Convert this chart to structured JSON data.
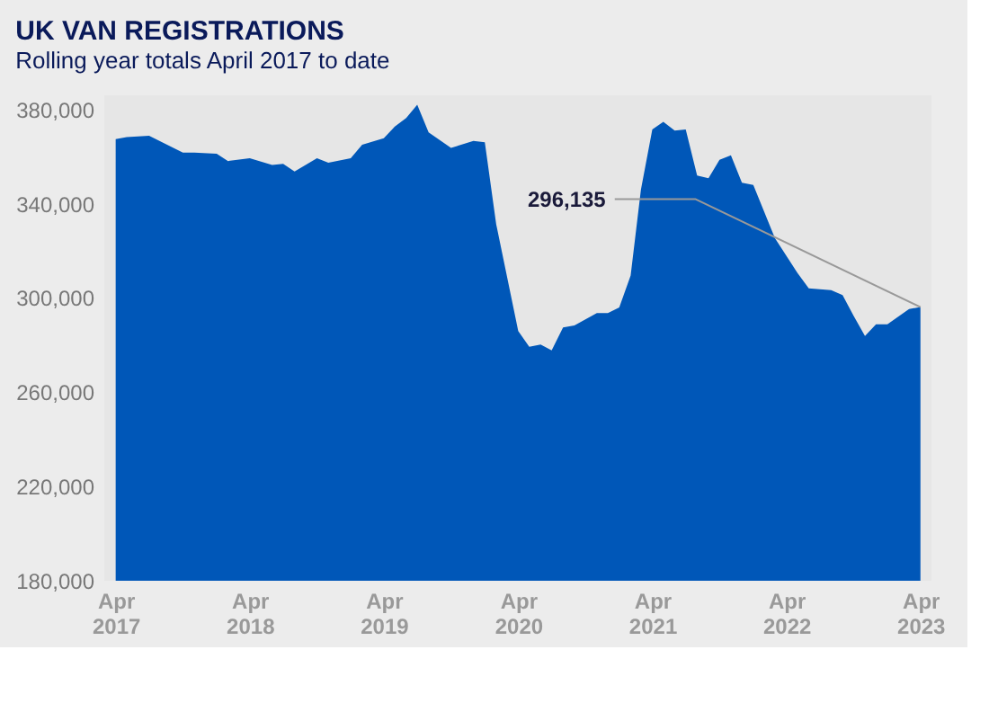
{
  "chart_data": {
    "type": "area",
    "title": "UK VAN REGISTRATIONS",
    "subtitle": "Rolling year totals April 2017 to date",
    "x": [
      "2017-04",
      "2017-05",
      "2017-07",
      "2017-10",
      "2017-11",
      "2018-01",
      "2018-02",
      "2018-04",
      "2018-06",
      "2018-07",
      "2018-08",
      "2018-10",
      "2018-11",
      "2019-01",
      "2019-02",
      "2019-04",
      "2019-05",
      "2019-06",
      "2019-07",
      "2019-08",
      "2019-10",
      "2019-12",
      "2020-01",
      "2020-02",
      "2020-04",
      "2020-05",
      "2020-06",
      "2020-07",
      "2020-08",
      "2020-09",
      "2020-11",
      "2020-12",
      "2021-01",
      "2021-02",
      "2021-03",
      "2021-04",
      "2021-05",
      "2021-06",
      "2021-07",
      "2021-08",
      "2021-09",
      "2021-10",
      "2021-11",
      "2021-12",
      "2022-01",
      "2022-03",
      "2022-05",
      "2022-06",
      "2022-08",
      "2022-09",
      "2022-10",
      "2022-11",
      "2022-12",
      "2023-01",
      "2023-03",
      "2023-04"
    ],
    "series": [
      {
        "color": "#0057b8",
        "values": [
          367400,
          368300,
          368800,
          361700,
          361700,
          361200,
          358100,
          359300,
          356400,
          356900,
          353700,
          359300,
          357400,
          359300,
          365000,
          367800,
          372700,
          376400,
          382000,
          370300,
          363700,
          366600,
          366100,
          331300,
          286000,
          279300,
          280200,
          277800,
          287500,
          288300,
          293600,
          293600,
          296000,
          309500,
          345900,
          371500,
          374700,
          371000,
          371500,
          352000,
          350800,
          358600,
          360500,
          348900,
          347900,
          325300,
          310700,
          304100,
          303300,
          301200,
          292400,
          283900,
          288800,
          288800,
          295300,
          296135
        ]
      }
    ],
    "xlim": [
      "2017-03",
      "2023-05"
    ],
    "xticks": [
      {
        "value": "2017-04",
        "label": "Apr\n2017"
      },
      {
        "value": "2018-04",
        "label": "Apr\n2018"
      },
      {
        "value": "2019-04",
        "label": "Apr\n2019"
      },
      {
        "value": "2020-04",
        "label": "Apr\n2020"
      },
      {
        "value": "2021-04",
        "label": "Apr\n2021"
      },
      {
        "value": "2022-04",
        "label": "Apr\n2022"
      },
      {
        "value": "2023-04",
        "label": "Apr\n2023"
      }
    ],
    "ylim": [
      180000,
      386000
    ],
    "yticks": [
      {
        "value": 180000,
        "label": "180,000"
      },
      {
        "value": 220000,
        "label": "220,000"
      },
      {
        "value": 260000,
        "label": "260,000"
      },
      {
        "value": 300000,
        "label": "300,000"
      },
      {
        "value": 340000,
        "label": "340,000"
      },
      {
        "value": 380000,
        "label": "380,000"
      }
    ],
    "annotations": [
      {
        "text": "296,135",
        "x": "2023-04",
        "y": 296135
      }
    ],
    "grid": false
  }
}
